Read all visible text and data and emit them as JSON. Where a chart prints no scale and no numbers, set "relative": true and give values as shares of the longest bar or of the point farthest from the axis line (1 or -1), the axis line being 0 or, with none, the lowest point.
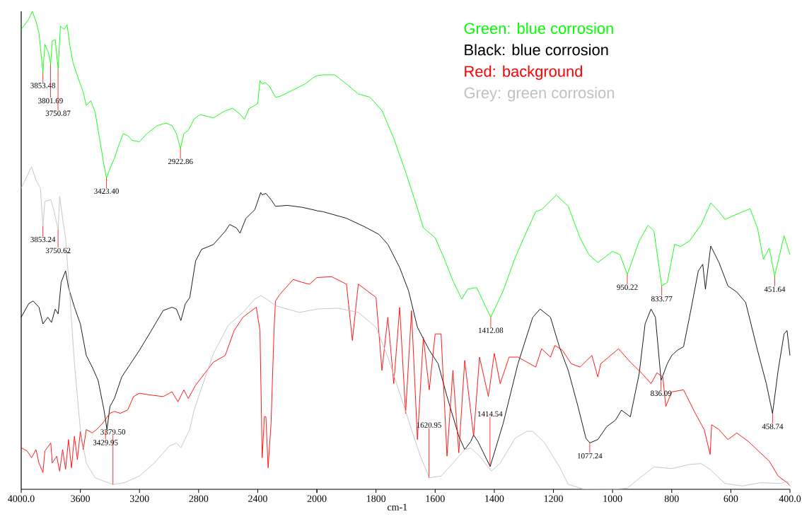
{
  "chart_data": [
    {
      "type": "line",
      "relative": true,
      "xlim": [
        4000,
        2000
      ],
      "xticks": [
        {
          "value": 4000,
          "label": "4000.0"
        },
        3600,
        3200,
        2800,
        2400,
        {
          "value": 2000,
          "label": null
        }
      ],
      "marker": "none",
      "line_style": "solid",
      "series": [
        {
          "color": "#00ff00",
          "x": [
            4000,
            3950,
            3925,
            3900,
            3880,
            3853,
            3840,
            3815,
            3801,
            3790,
            3770,
            3750,
            3735,
            3710,
            3690,
            3670,
            3650,
            3620,
            3580,
            3560,
            3530,
            3500,
            3470,
            3440,
            3423,
            3400,
            3370,
            3340,
            3310,
            3280,
            3250,
            3200,
            3150,
            3080,
            3020,
            2980,
            2950,
            2923,
            2900,
            2870,
            2830,
            2790,
            2700,
            2620,
            2570,
            2520,
            2490,
            2460,
            2400,
            2385,
            2370,
            2350,
            2320,
            2280,
            2250,
            2150,
            2080,
            2020,
            2000
          ],
          "values": [
            0.962,
            0.983,
            1.0,
            0.979,
            0.955,
            0.872,
            0.931,
            0.913,
            0.889,
            0.938,
            0.941,
            0.879,
            0.969,
            0.962,
            0.972,
            0.927,
            0.893,
            0.865,
            0.83,
            0.803,
            0.813,
            0.789,
            0.734,
            0.678,
            0.651,
            0.671,
            0.692,
            0.72,
            0.744,
            0.74,
            0.73,
            0.727,
            0.744,
            0.761,
            0.766,
            0.761,
            0.744,
            0.713,
            0.744,
            0.751,
            0.775,
            0.784,
            0.777,
            0.792,
            0.797,
            0.785,
            0.774,
            0.796,
            0.807,
            0.855,
            0.848,
            0.851,
            0.843,
            0.82,
            0.822,
            0.837,
            0.848,
            0.862,
            0.865
          ]
        },
        {
          "color": "#000000",
          "x": [
            4000,
            3950,
            3920,
            3880,
            3853,
            3820,
            3795,
            3770,
            3750,
            3730,
            3700,
            3680,
            3640,
            3600,
            3560,
            3520,
            3480,
            3440,
            3420,
            3400,
            3370,
            3320,
            3260,
            3200,
            3120,
            3040,
            2980,
            2950,
            2920,
            2890,
            2860,
            2820,
            2780,
            2700,
            2620,
            2590,
            2545,
            2520,
            2480,
            2420,
            2380,
            2370,
            2345,
            2310,
            2280,
            2200,
            2100,
            2000
          ],
          "values": [
            0.36,
            0.388,
            0.394,
            0.381,
            0.346,
            0.36,
            0.349,
            0.377,
            0.367,
            0.433,
            0.457,
            0.422,
            0.381,
            0.346,
            0.28,
            0.256,
            0.228,
            0.166,
            0.125,
            0.173,
            0.19,
            0.235,
            0.263,
            0.291,
            0.332,
            0.374,
            0.381,
            0.377,
            0.353,
            0.388,
            0.401,
            0.478,
            0.502,
            0.512,
            0.54,
            0.554,
            0.547,
            0.536,
            0.567,
            0.585,
            0.621,
            0.616,
            0.619,
            0.606,
            0.592,
            0.594,
            0.59,
            0.583
          ]
        },
        {
          "color": "#ff0000",
          "x": [
            4000,
            3960,
            3930,
            3900,
            3880,
            3853,
            3840,
            3800,
            3790,
            3760,
            3740,
            3720,
            3700,
            3680,
            3660,
            3640,
            3620,
            3600,
            3580,
            3560,
            3520,
            3490,
            3450,
            3400,
            3370,
            3330,
            3280,
            3240,
            3200,
            3120,
            3040,
            2980,
            2940,
            2900,
            2870,
            2820,
            2700,
            2620,
            2560,
            2500,
            2410,
            2385,
            2370,
            2355,
            2345,
            2330,
            2310,
            2290,
            2280,
            2250,
            2160,
            2100,
            2050,
            2000
          ],
          "values": [
            0.087,
            0.08,
            0.066,
            0.083,
            0.055,
            0.035,
            0.08,
            0.097,
            0.055,
            0.069,
            0.038,
            0.083,
            0.042,
            0.104,
            0.045,
            0.111,
            0.062,
            0.121,
            0.083,
            0.125,
            0.118,
            0.125,
            0.138,
            0.159,
            0.163,
            0.159,
            0.166,
            0.194,
            0.201,
            0.197,
            0.194,
            0.204,
            0.183,
            0.208,
            0.19,
            0.218,
            0.266,
            0.28,
            0.332,
            0.36,
            0.381,
            0.332,
            0.066,
            0.152,
            0.152,
            0.045,
            0.138,
            0.332,
            0.394,
            0.408,
            0.439,
            0.433,
            0.429,
            0.443
          ]
        },
        {
          "color": "#c0c0c0",
          "x": [
            4000,
            3930,
            3900,
            3870,
            3853,
            3840,
            3800,
            3780,
            3750,
            3740,
            3720,
            3700,
            3670,
            3640,
            3600,
            3560,
            3500,
            3380,
            3300,
            3200,
            3100,
            3000,
            2950,
            2920,
            2860,
            2830,
            2800,
            2700,
            2600,
            2500,
            2420,
            2380,
            2340,
            2280,
            2200,
            2120,
            2000
          ],
          "values": [
            0.63,
            0.675,
            0.647,
            0.63,
            0.55,
            0.602,
            0.606,
            0.585,
            0.543,
            0.613,
            0.567,
            0.526,
            0.401,
            0.263,
            0.125,
            0.055,
            0.024,
            0.01,
            0.014,
            0.028,
            0.055,
            0.09,
            0.097,
            0.087,
            0.125,
            0.166,
            0.194,
            0.284,
            0.343,
            0.37,
            0.398,
            0.405,
            0.398,
            0.384,
            0.377,
            0.37,
            0.377
          ]
        }
      ],
      "annotations": [
        {
          "text": "3853.48",
          "x": 3853.48,
          "y": 0.872
        },
        {
          "text": "3801.69",
          "x": 3801.69,
          "y": 0.889
        },
        {
          "text": "3750.87",
          "x": 3750.87,
          "y": 0.879
        },
        {
          "text": "3423.40",
          "x": 3423.4,
          "y": 0.651
        },
        {
          "text": "2922.86",
          "x": 2922.86,
          "y": 0.713
        },
        {
          "text": "3853.24",
          "x": 3853.24,
          "y": 0.55
        },
        {
          "text": "3750.62",
          "x": 3750.62,
          "y": 0.543
        },
        {
          "text": "3379.50",
          "x": 3379.5,
          "y": 0.01
        },
        {
          "text": "3429.95",
          "x": 3429.95,
          "y": 0.125
        }
      ]
    },
    {
      "type": "line",
      "relative": true,
      "xlabel": "cm-1",
      "xlim": [
        2000,
        400
      ],
      "xticks": [
        2000,
        1800,
        1600,
        1400,
        1200,
        1000,
        800,
        600,
        {
          "value": 400,
          "label": "400.0"
        }
      ],
      "legend": "top",
      "marker": "none",
      "line_style": "solid",
      "series": [
        {
          "name": "Green: blue corrosion",
          "color": "#00ff00",
          "x": [
            2000,
            1980,
            1940,
            1900,
            1860,
            1820,
            1780,
            1740,
            1700,
            1660,
            1640,
            1600,
            1570,
            1540,
            1510,
            1490,
            1460,
            1412,
            1370,
            1330,
            1290,
            1260,
            1240,
            1190,
            1150,
            1110,
            1080,
            1050,
            1000,
            975,
            950,
            910,
            880,
            860,
            834,
            815,
            790,
            770,
            740,
            700,
            668,
            640,
            620,
            570,
            535,
            510,
            490,
            470,
            452,
            420,
            400
          ],
          "values": [
            0.998,
            1.0,
            1.0,
            0.978,
            0.954,
            0.946,
            0.914,
            0.847,
            0.766,
            0.678,
            0.631,
            0.607,
            0.558,
            0.503,
            0.459,
            0.483,
            0.487,
            0.415,
            0.479,
            0.558,
            0.623,
            0.67,
            0.675,
            0.71,
            0.683,
            0.607,
            0.566,
            0.547,
            0.574,
            0.566,
            0.519,
            0.599,
            0.637,
            0.623,
            0.491,
            0.499,
            0.591,
            0.586,
            0.599,
            0.639,
            0.691,
            0.67,
            0.651,
            0.667,
            0.677,
            0.631,
            0.555,
            0.582,
            0.514,
            0.612,
            0.566
          ]
        },
        {
          "name": "Black: blue corrosion",
          "color": "#000000",
          "x": [
            2000,
            1980,
            1900,
            1840,
            1790,
            1760,
            1720,
            1690,
            1660,
            1620,
            1590,
            1560,
            1520,
            1500,
            1480,
            1470,
            1455,
            1414,
            1370,
            1320,
            1270,
            1245,
            1210,
            1180,
            1150,
            1120,
            1090,
            1077,
            1050,
            1020,
            990,
            970,
            940,
            910,
            890,
            870,
            855,
            836,
            815,
            800,
            780,
            760,
            740,
            710,
            695,
            686,
            668,
            640,
            610,
            580,
            550,
            510,
            480,
            459,
            440,
            420,
            410,
            400
          ],
          "values": [
            0.672,
            0.67,
            0.654,
            0.634,
            0.615,
            0.591,
            0.535,
            0.479,
            0.391,
            0.336,
            0.303,
            0.224,
            0.128,
            0.096,
            0.115,
            0.131,
            0.115,
            0.055,
            0.159,
            0.303,
            0.415,
            0.435,
            0.415,
            0.344,
            0.287,
            0.208,
            0.123,
            0.112,
            0.12,
            0.151,
            0.167,
            0.191,
            0.175,
            0.279,
            0.399,
            0.435,
            0.415,
            0.263,
            0.303,
            0.323,
            0.336,
            0.344,
            0.415,
            0.527,
            0.543,
            0.483,
            0.587,
            0.547,
            0.491,
            0.476,
            0.451,
            0.336,
            0.255,
            0.183,
            0.287,
            0.375,
            0.383,
            0.323
          ]
        },
        {
          "name": "Red: background",
          "color": "#ff0000",
          "x": [
            2000,
            1950,
            1900,
            1880,
            1860,
            1800,
            1780,
            1760,
            1740,
            1720,
            1700,
            1680,
            1660,
            1640,
            1620,
            1600,
            1580,
            1560,
            1540,
            1520,
            1500,
            1470,
            1450,
            1420,
            1400,
            1380,
            1350,
            1320,
            1300,
            1260,
            1240,
            1210,
            1195,
            1170,
            1140,
            1110,
            1070,
            1050,
            1040,
            980,
            940,
            900,
            870,
            850,
            830,
            820,
            800,
            760,
            720,
            690,
            670,
            665,
            640,
            610,
            580,
            540,
            500,
            470,
            440,
            410,
            400
          ],
          "values": [
            0.511,
            0.513,
            0.495,
            0.359,
            0.495,
            0.463,
            0.287,
            0.415,
            0.255,
            0.439,
            0.183,
            0.431,
            0.12,
            0.367,
            0.24,
            0.375,
            0.375,
            0.08,
            0.287,
            0.088,
            0.311,
            0.128,
            0.319,
            0.224,
            0.328,
            0.255,
            0.319,
            0.319,
            0.311,
            0.295,
            0.339,
            0.319,
            0.347,
            0.336,
            0.303,
            0.295,
            0.323,
            0.271,
            0.303,
            0.339,
            0.307,
            0.279,
            0.255,
            0.281,
            0.271,
            0.2,
            0.235,
            0.24,
            0.183,
            0.144,
            0.084,
            0.156,
            0.144,
            0.12,
            0.136,
            0.115,
            0.088,
            0.068,
            0.032,
            0.016,
            0.008
          ]
        },
        {
          "name": "Grey: green corrosion",
          "color": "#c0c0c0",
          "x": [
            2000,
            1930,
            1860,
            1800,
            1760,
            1720,
            1680,
            1650,
            1620,
            1580,
            1540,
            1500,
            1480,
            1450,
            1410,
            1380,
            1330,
            1290,
            1270,
            1230,
            1180,
            1150,
            1100,
            1000,
            950,
            900,
            860,
            800,
            740,
            700,
            670,
            620,
            560,
            500,
            430,
            410,
            400
          ],
          "values": [
            0.435,
            0.437,
            0.427,
            0.391,
            0.319,
            0.232,
            0.144,
            0.08,
            0.028,
            0.032,
            0.063,
            0.096,
            0.1,
            0.08,
            0.044,
            0.063,
            0.123,
            0.14,
            0.14,
            0.112,
            0.055,
            0.012,
            0.001,
            0.0,
            0.003,
            0.032,
            0.054,
            0.05,
            0.06,
            0.062,
            0.048,
            0.014,
            0.008,
            0.016,
            0.014,
            0.02,
            0.008
          ]
        }
      ],
      "annotations": [
        {
          "text": "1412.08",
          "x": 1412.08,
          "y": 0.415
        },
        {
          "text": "950.22",
          "x": 950.22,
          "y": 0.519
        },
        {
          "text": "833.77",
          "x": 833.77,
          "y": 0.491
        },
        {
          "text": "451.64",
          "x": 451.64,
          "y": 0.514
        },
        {
          "text": "1620.95",
          "x": 1620.95,
          "y": 0.028
        },
        {
          "text": "1414.54",
          "x": 1414.54,
          "y": 0.055
        },
        {
          "text": "1077.24",
          "x": 1077.24,
          "y": 0.112
        },
        {
          "text": "836.09",
          "x": 836.09,
          "y": 0.263
        },
        {
          "text": "458.74",
          "x": 458.74,
          "y": 0.183
        }
      ]
    }
  ]
}
